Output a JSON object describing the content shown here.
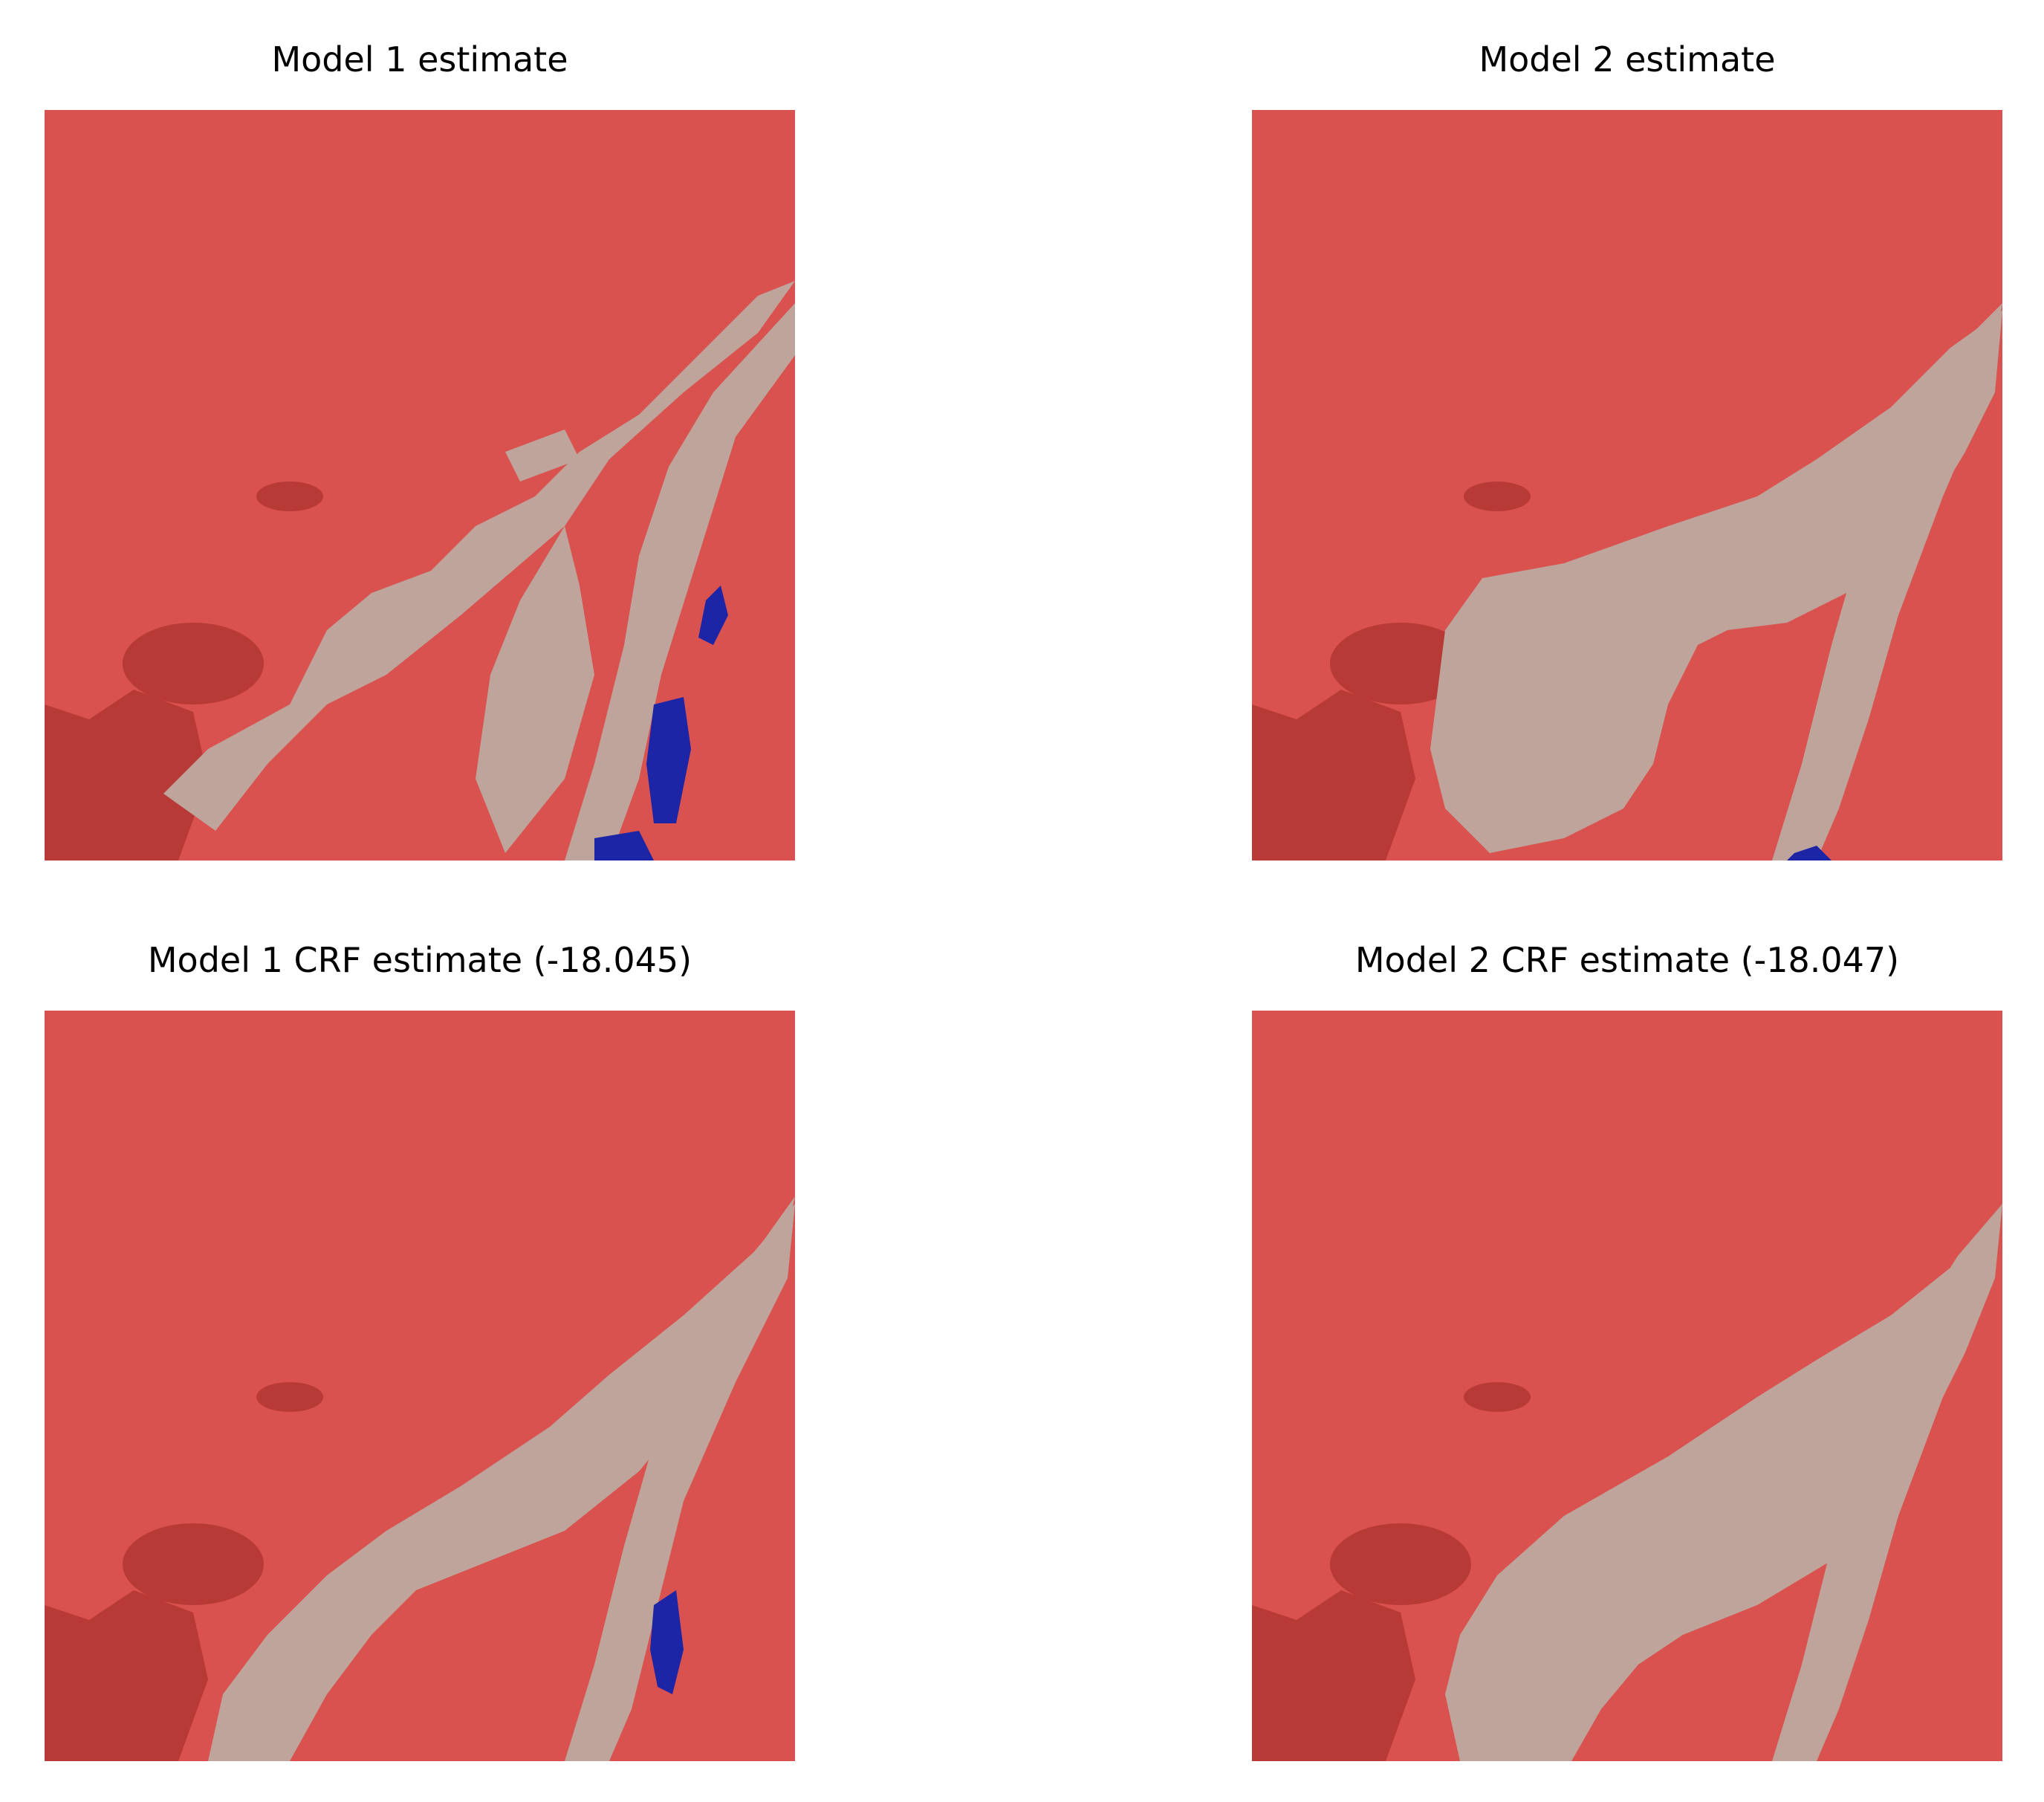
{
  "figure": {
    "panels": [
      {
        "title": "Model 1 estimate",
        "variant": "m1"
      },
      {
        "title": "Model 2 estimate",
        "variant": "m2"
      },
      {
        "title": "Model 1 CRF estimate (-18.045)",
        "variant": "m1crf"
      },
      {
        "title": "Model 2 CRF estimate (-18.047)",
        "variant": "m2crf"
      }
    ]
  },
  "colors": {
    "background_class": "#d9524f",
    "background_dark": "#b83a36",
    "sediment_class": "#bea49a",
    "sediment_dark": "#a98e85",
    "water_class": "#1c25a6"
  }
}
